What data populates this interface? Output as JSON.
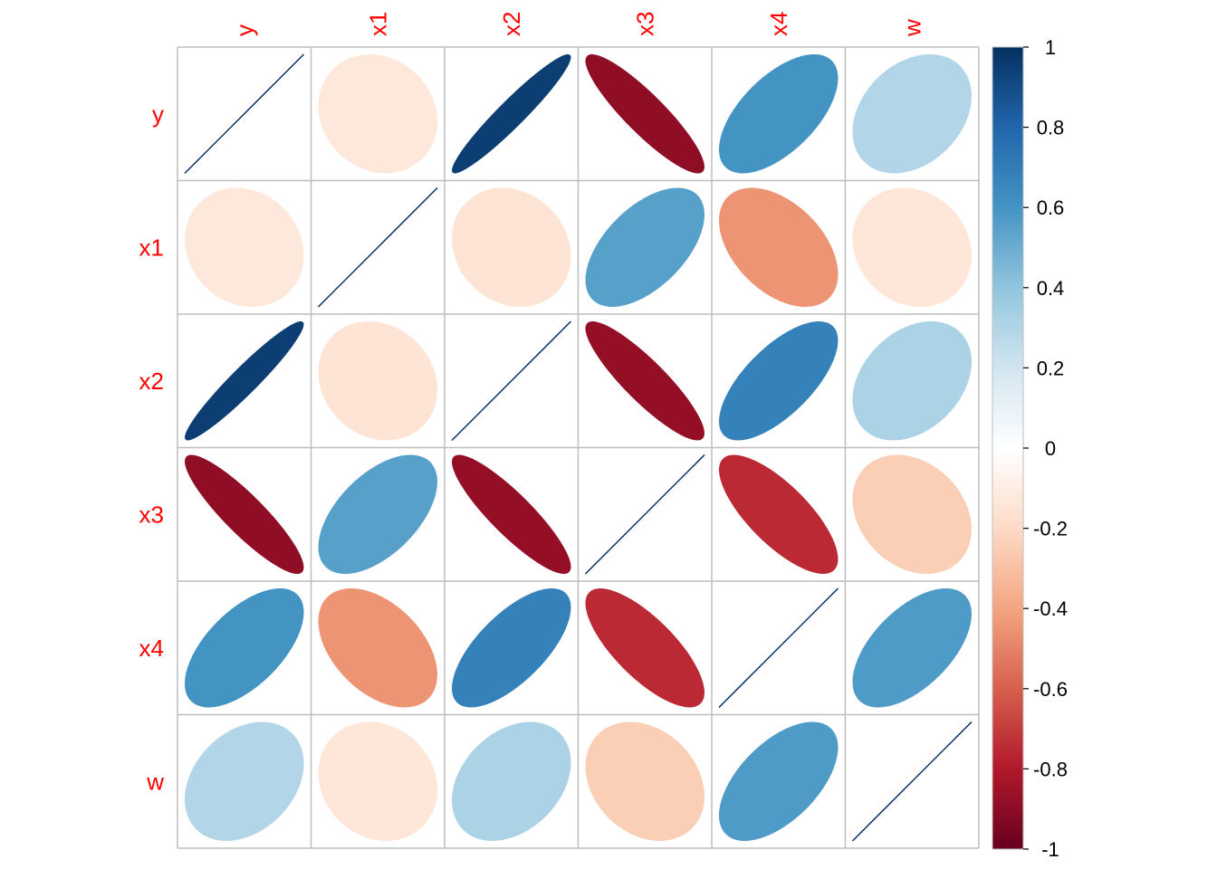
{
  "chart_data": {
    "type": "heatmap",
    "method": "ellipse",
    "variables": [
      "y",
      "x1",
      "x2",
      "x3",
      "x4",
      "w"
    ],
    "matrix": [
      [
        1.0,
        -0.13,
        0.95,
        -0.89,
        0.6,
        0.3
      ],
      [
        -0.13,
        1.0,
        -0.15,
        0.55,
        -0.45,
        -0.14
      ],
      [
        0.95,
        -0.15,
        1.0,
        -0.88,
        0.68,
        0.32
      ],
      [
        -0.89,
        0.55,
        -0.88,
        1.0,
        -0.75,
        -0.25
      ],
      [
        0.6,
        -0.45,
        0.68,
        -0.75,
        1.0,
        0.57
      ],
      [
        0.3,
        -0.14,
        0.32,
        -0.25,
        0.57,
        1.0
      ]
    ],
    "label_color": "#ff0000",
    "grid_color": "#bebebe",
    "colorbar": {
      "range": [
        -1,
        1
      ],
      "ticks": [
        "1",
        "0.8",
        "0.6",
        "0.4",
        "0.2",
        "0",
        "-0.2",
        "-0.4",
        "-0.6",
        "-0.8",
        "-1"
      ],
      "colors": [
        "#67001f",
        "#b2182b",
        "#d6604d",
        "#f4a582",
        "#fddbc7",
        "#ffffff",
        "#d1e5f0",
        "#92c5de",
        "#4393c3",
        "#2166ac",
        "#053061"
      ]
    }
  }
}
